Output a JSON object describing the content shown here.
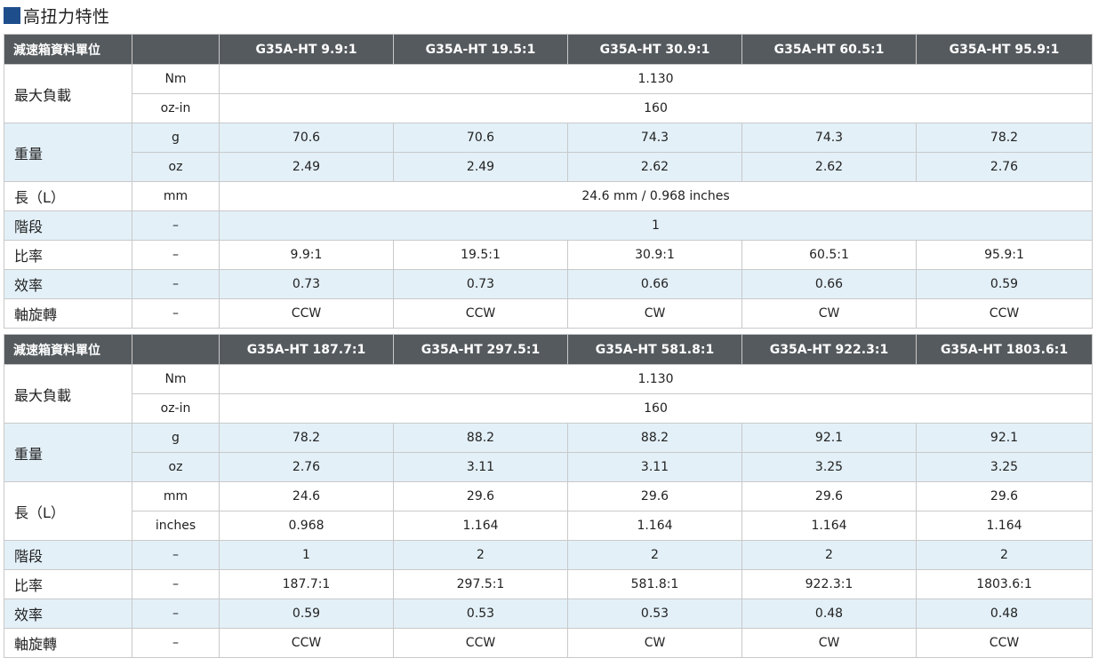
{
  "title": "高扭力特性",
  "table1": {
    "header0": "減速箱資料單位",
    "models": [
      "G35A-HT 9.9:1",
      "G35A-HT 19.5:1",
      "G35A-HT 30.9:1",
      "G35A-HT 60.5:1",
      "G35A-HT 95.9:1"
    ],
    "max_load_label": "最大負載",
    "nm_unit": "Nm",
    "nm_value": "1.130",
    "ozin_unit": "oz-in",
    "ozin_value": "160",
    "weight_label": "重量",
    "g_unit": "g",
    "g_values": [
      "70.6",
      "70.6",
      "74.3",
      "74.3",
      "78.2"
    ],
    "oz_unit": "oz",
    "oz_values": [
      "2.49",
      "2.49",
      "2.62",
      "2.62",
      "2.76"
    ],
    "length_label": "長（L）",
    "length_unit": "mm",
    "length_value": "24.6 mm / 0.968 inches",
    "stage_label": "階段",
    "stage_unit": "–",
    "stage_value": "1",
    "ratio_label": "比率",
    "ratio_unit": "–",
    "ratio_values": [
      "9.9:1",
      "19.5:1",
      "30.9:1",
      "60.5:1",
      "95.9:1"
    ],
    "eff_label": "效率",
    "eff_unit": "–",
    "eff_values": [
      "0.73",
      "0.73",
      "0.66",
      "0.66",
      "0.59"
    ],
    "rot_label": "軸旋轉",
    "rot_unit": "–",
    "rot_values": [
      "CCW",
      "CCW",
      "CW",
      "CW",
      "CCW"
    ]
  },
  "table2": {
    "header0": "減速箱資料單位",
    "models": [
      "G35A-HT 187.7:1",
      "G35A-HT 297.5:1",
      "G35A-HT 581.8:1",
      "G35A-HT 922.3:1",
      "G35A-HT 1803.6:1"
    ],
    "max_load_label": "最大負載",
    "nm_unit": "Nm",
    "nm_value": "1.130",
    "ozin_unit": "oz-in",
    "ozin_value": "160",
    "weight_label": "重量",
    "g_unit": "g",
    "g_values": [
      "78.2",
      "88.2",
      "88.2",
      "92.1",
      "92.1"
    ],
    "oz_unit": "oz",
    "oz_values": [
      "2.76",
      "3.11",
      "3.11",
      "3.25",
      "3.25"
    ],
    "length_label": "長（L）",
    "mm_unit": "mm",
    "mm_values": [
      "24.6",
      "29.6",
      "29.6",
      "29.6",
      "29.6"
    ],
    "inch_unit": "inches",
    "inch_values": [
      "0.968",
      "1.164",
      "1.164",
      "1.164",
      "1.164"
    ],
    "stage_label": "階段",
    "stage_unit": "–",
    "stage_values": [
      "1",
      "2",
      "2",
      "2",
      "2"
    ],
    "ratio_label": "比率",
    "ratio_unit": "–",
    "ratio_values": [
      "187.7:1",
      "297.5:1",
      "581.8:1",
      "922.3:1",
      "1803.6:1"
    ],
    "eff_label": "效率",
    "eff_unit": "–",
    "eff_values": [
      "0.59",
      "0.53",
      "0.53",
      "0.48",
      "0.48"
    ],
    "rot_label": "軸旋轉",
    "rot_unit": "–",
    "rot_values": [
      "CCW",
      "CCW",
      "CW",
      "CW",
      "CCW"
    ]
  }
}
